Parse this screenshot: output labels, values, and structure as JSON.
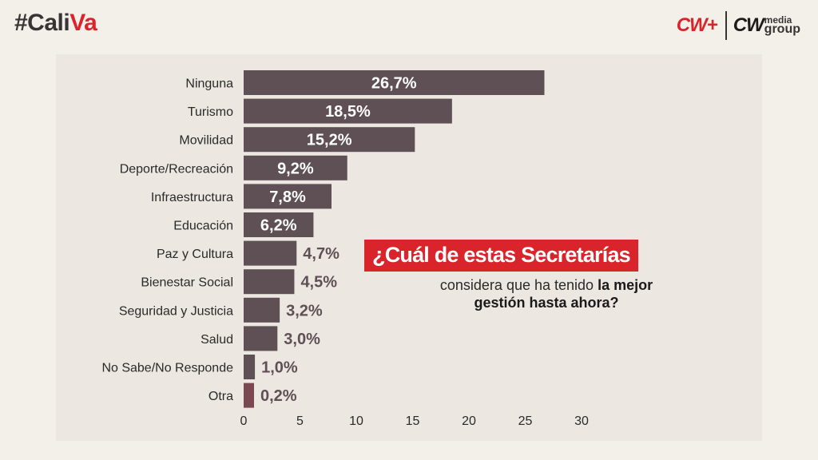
{
  "header": {
    "hashtag_part1": "#Cali",
    "hashtag_part2": "Va",
    "logo_left": "CW+",
    "logo_right_main": "CW",
    "logo_right_sub1": "media",
    "logo_right_sub2": "group"
  },
  "question": {
    "title": "¿Cuál de estas Secretarías",
    "sub_plain": "considera que ha tenido",
    "sub_bold_1": "la mejor",
    "sub_bold_2": "gestión hasta ahora?"
  },
  "colors": {
    "bar": "#5e5055",
    "bar_last": "#7a4850",
    "accent": "#d9242b",
    "panel": "#ece7e1"
  },
  "chart_data": {
    "type": "bar",
    "orientation": "horizontal",
    "categories": [
      "Ninguna",
      "Turismo",
      "Movilidad",
      "Deporte/Recreación",
      "Infraestructura",
      "Educación",
      "Paz y Cultura",
      "Bienestar Social",
      "Seguridad y Justicia",
      "Salud",
      "No Sabe/No Responde",
      "Otra"
    ],
    "values": [
      26.7,
      18.5,
      15.2,
      9.2,
      7.8,
      6.2,
      4.7,
      4.5,
      3.2,
      3.0,
      1.0,
      0.2
    ],
    "labels": [
      "26,7%",
      "18,5%",
      "15,2%",
      "9,2%",
      "7,8%",
      "6,2%",
      "4,7%",
      "4,5%",
      "3,2%",
      "3,0%",
      "1,0%",
      "0,2%"
    ],
    "xticks": [
      0,
      5,
      10,
      15,
      20,
      25,
      30
    ],
    "xlim": [
      0,
      30
    ],
    "grid": false
  }
}
